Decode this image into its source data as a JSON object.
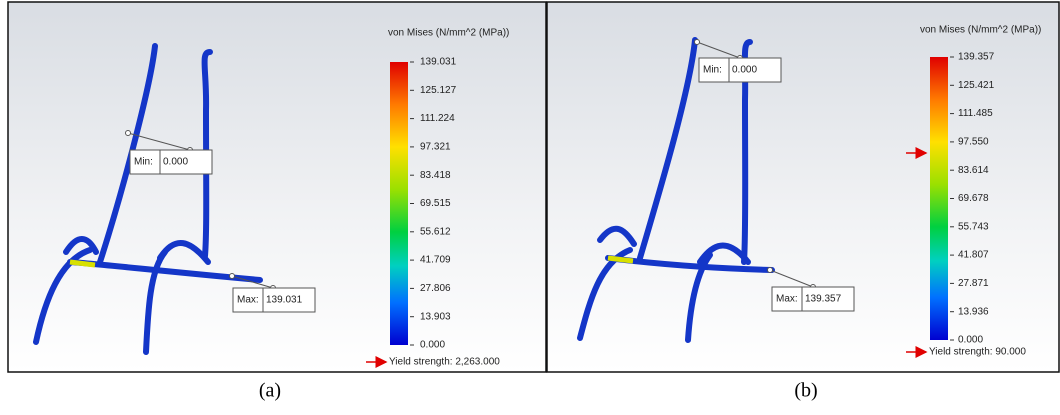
{
  "panels": [
    {
      "legend_title": "von Mises (N/mm^2 (MPa))",
      "scale": [
        "139.031",
        "125.127",
        "111.224",
        "97.321",
        "83.418",
        "69.515",
        "55.612",
        "41.709",
        "27.806",
        "13.903",
        "0.000"
      ],
      "min": {
        "label": "Min:",
        "value": "0.000"
      },
      "max": {
        "label": "Max:",
        "value": "139.031"
      },
      "yield": "Yield strength: 2,263.000",
      "caption": "(a)"
    },
    {
      "legend_title": "von Mises (N/mm^2 (MPa))",
      "scale": [
        "139.357",
        "125.421",
        "111.485",
        "97.550",
        "83.614",
        "69.678",
        "55.743",
        "41.807",
        "27.871",
        "13.936",
        "0.000"
      ],
      "min": {
        "label": "Min:",
        "value": "0.000"
      },
      "max": {
        "label": "Max:",
        "value": "139.357"
      },
      "yield": "Yield strength: 90.000",
      "caption": "(b)"
    }
  ]
}
